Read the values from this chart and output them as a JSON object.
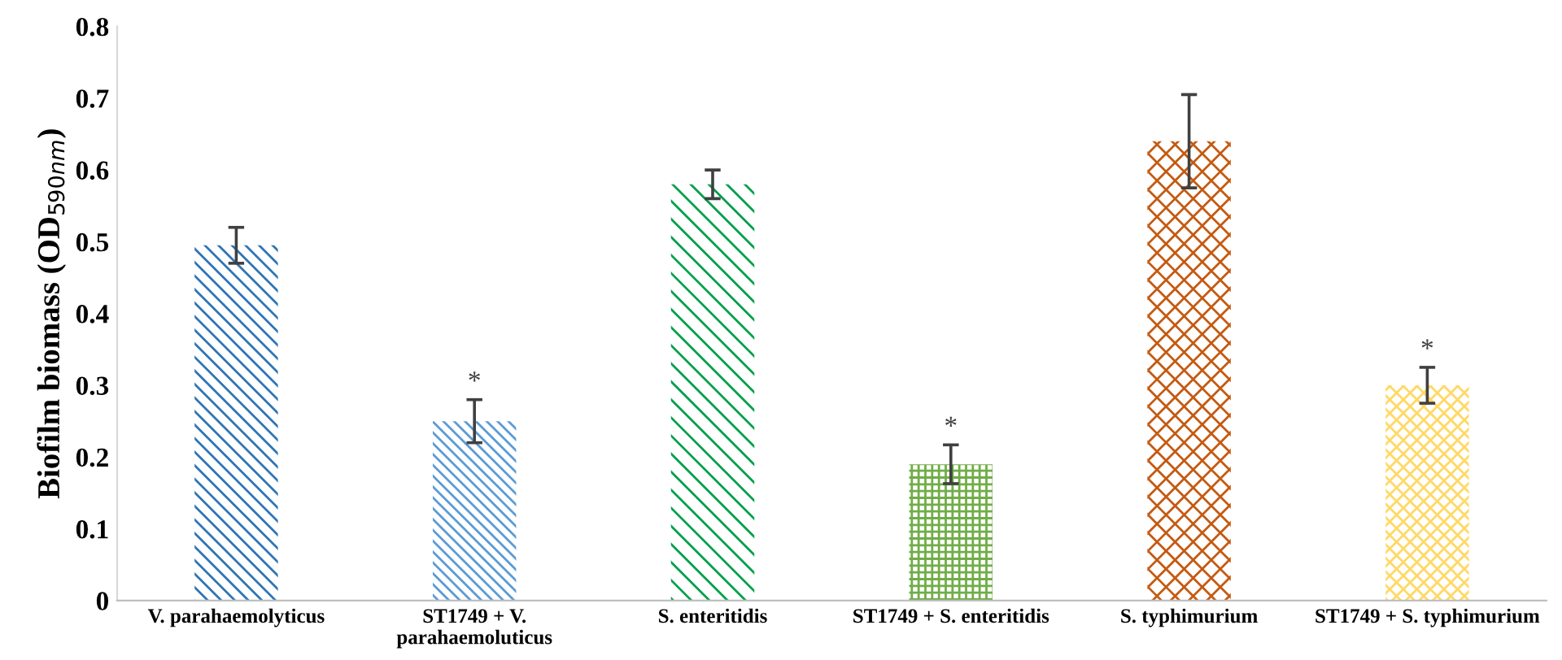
{
  "chart_data": {
    "type": "bar",
    "ylabel": "Biofilm biomass (OD$_{590nm}$)",
    "categories": [
      "V. parahaemolyticus",
      "ST1749 + V. parahaemoluticus",
      "S. enteritidis",
      "ST1749 + S. enteritidis",
      "S. typhimurium",
      "ST1749 + S. typhimurium"
    ],
    "values": [
      0.495,
      0.25,
      0.58,
      0.19,
      0.64,
      0.3
    ],
    "errors": [
      0.025,
      0.03,
      0.02,
      0.027,
      0.065,
      0.025
    ],
    "colors": [
      "#2e75b6",
      "#5b9bd5",
      "#00a04a",
      "#70ad47",
      "#c55a11",
      "#ffd966"
    ],
    "ylim": [
      0,
      0.8
    ],
    "yticks": [
      {
        "value": 0,
        "label": "0"
      },
      0.1,
      0.2,
      0.3,
      0.4,
      0.5,
      0.6,
      0.7,
      0.8
    ],
    "annotations": [
      {
        "text": "*",
        "x": "ST1749 + V. parahaemoluticus",
        "y": 0.25
      },
      {
        "text": "*",
        "x": "ST1749 + S. enteritidis",
        "y": 0.19
      },
      {
        "text": "*",
        "x": "ST1749 + S. typhimurium",
        "y": 0.3
      }
    ],
    "grid": false,
    "legend": false
  }
}
